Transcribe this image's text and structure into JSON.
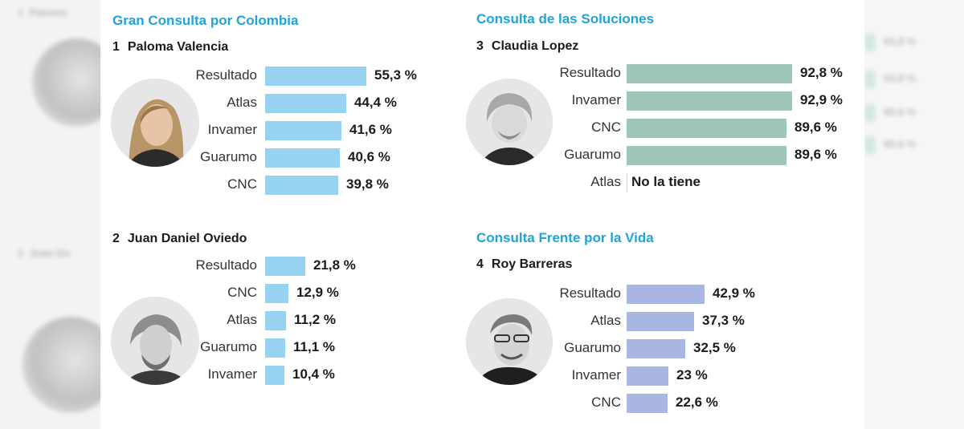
{
  "colors": {
    "heading": "#1fa3d8",
    "bar_blue": "#97d3f0",
    "bar_teal": "#9ec6bb",
    "bar_lavender": "#a9b6e2"
  },
  "chart_data": [
    {
      "type": "bar",
      "orientation": "horizontal",
      "title": "Gran Consulta por Colombia",
      "candidate_number": "1",
      "candidate": "Paloma Valencia",
      "categories": [
        "Resultado",
        "Atlas",
        "Invamer",
        "Guarumo",
        "CNC"
      ],
      "values": [
        55.3,
        44.4,
        41.6,
        40.6,
        39.8
      ],
      "value_labels": [
        "55,3 %",
        "44,4 %",
        "41,6 %",
        "40,6 %",
        "39,8 %"
      ],
      "xlim": [
        0,
        100
      ],
      "color": "#97d3f0"
    },
    {
      "type": "bar",
      "orientation": "horizontal",
      "title": "",
      "candidate_number": "2",
      "candidate": "Juan Daniel Oviedo",
      "categories": [
        "Resultado",
        "CNC",
        "Atlas",
        "Guarumo",
        "Invamer"
      ],
      "values": [
        21.8,
        12.9,
        11.2,
        11.1,
        10.4
      ],
      "value_labels": [
        "21,8 %",
        "12,9 %",
        "11,2 %",
        "11,1 %",
        "10,4 %"
      ],
      "xlim": [
        0,
        100
      ],
      "color": "#97d3f0"
    },
    {
      "type": "bar",
      "orientation": "horizontal",
      "title": "Consulta de las Soluciones",
      "candidate_number": "3",
      "candidate": "Claudia Lopez",
      "categories": [
        "Resultado",
        "Invamer",
        "CNC",
        "Guarumo",
        "Atlas"
      ],
      "values": [
        92.8,
        92.9,
        89.6,
        89.6,
        null
      ],
      "value_labels": [
        "92,8 %",
        "92,9 %",
        "89,6 %",
        "89,6 %",
        "No la tiene"
      ],
      "xlim": [
        0,
        100
      ],
      "color": "#9ec6bb"
    },
    {
      "type": "bar",
      "orientation": "horizontal",
      "title": "Consulta Frente por la Vida",
      "candidate_number": "4",
      "candidate": "Roy Barreras",
      "categories": [
        "Resultado",
        "Atlas",
        "Guarumo",
        "Invamer",
        "CNC"
      ],
      "values": [
        42.9,
        37.3,
        32.5,
        23,
        22.6
      ],
      "value_labels": [
        "42,9 %",
        "37,3 %",
        "32,5 %",
        "23 %",
        "22,6 %"
      ],
      "xlim": [
        0,
        100
      ],
      "color": "#a9b6e2"
    }
  ]
}
